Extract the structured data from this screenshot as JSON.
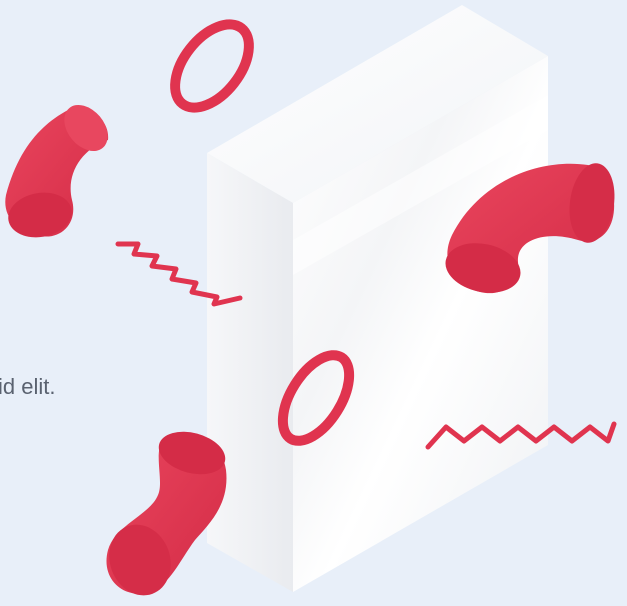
{
  "hero": {
    "caption": "id elit."
  },
  "illustration": {
    "accent_color": "#e0344f",
    "box_color": "#ffffff",
    "background_color": "#e8eff9",
    "elements": [
      "white-box",
      "red-ring-top",
      "red-ring-middle",
      "red-pipe-left",
      "red-pipe-right",
      "red-pipe-bottom",
      "red-zigzag-left",
      "red-zigzag-right"
    ]
  }
}
